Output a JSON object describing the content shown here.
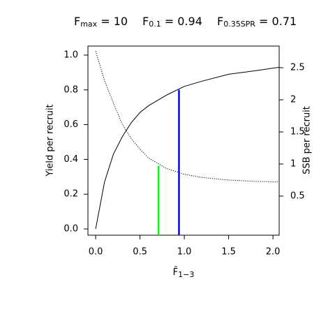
{
  "chart_data": {
    "type": "line",
    "annotations": [
      {
        "main": "F",
        "sub": "max",
        "rest": " = 10"
      },
      {
        "main": "F",
        "sub": "0.1",
        "rest": " = 0.94"
      },
      {
        "main": "F",
        "sub": "0.35SPR",
        "rest": " = 0.71"
      }
    ],
    "x_label": {
      "main": "F̄",
      "sub": "1−3"
    },
    "y_label": "Yield per recruit",
    "y2_label": "SSB per recruit",
    "x": [
      0,
      0.1,
      0.2,
      0.3,
      0.4,
      0.5,
      0.6,
      0.8,
      1.0,
      1.2,
      1.5,
      1.8,
      2.07
    ],
    "series": [
      {
        "name": "Yield per recruit",
        "color": "#000000",
        "style": "solid",
        "values": [
          0,
          0.27,
          0.43,
          0.53,
          0.61,
          0.67,
          0.71,
          0.77,
          0.82,
          0.85,
          0.89,
          0.91,
          0.93
        ]
      },
      {
        "name": "SSB per recruit",
        "color": "#000000",
        "style": "dotted",
        "axis": "y2",
        "values": [
          2.76,
          2.3,
          1.95,
          1.62,
          1.4,
          1.23,
          1.09,
          0.93,
          0.84,
          0.79,
          0.75,
          0.73,
          0.72
        ]
      }
    ],
    "reference_lines": [
      {
        "x": 0.94,
        "top": 0.8,
        "color": "#0000ff"
      },
      {
        "x": 0.71,
        "top": 0.97,
        "axis": "y2",
        "color": "#00ff00"
      }
    ],
    "xlim": [
      -0.087,
      2.07
    ],
    "ylim": [
      -0.036,
      1.052
    ],
    "y2lim": [
      -0.109,
      2.837
    ],
    "xticks": [
      {
        "value": 0,
        "label": "0.0"
      },
      0.5,
      {
        "value": 1,
        "label": "1.0"
      },
      1.5,
      {
        "value": 2,
        "label": "2.0"
      }
    ],
    "yticks": [
      {
        "value": 0,
        "label": "0.0"
      },
      0.2,
      0.4,
      0.6,
      0.8,
      {
        "value": 1,
        "label": "1.0"
      }
    ],
    "y2ticks": [
      0.5,
      1,
      1.5,
      2,
      2.5
    ]
  }
}
